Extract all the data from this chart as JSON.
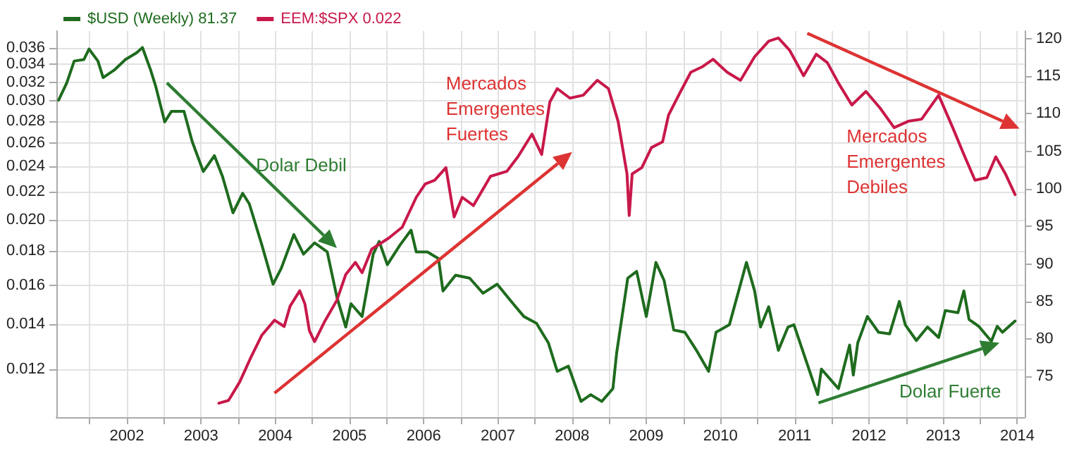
{
  "chart_data": {
    "type": "line",
    "series": [
      {
        "name": "$USD (Weekly) 81.37",
        "color": "#1e6b1e",
        "axis": "y2",
        "x": [
          2001.08,
          2001.19,
          2001.29,
          2001.42,
          2001.49,
          2001.61,
          2001.68,
          2001.83,
          2001.98,
          2002.13,
          2002.21,
          2002.32,
          2002.39,
          2002.51,
          2002.6,
          2002.77,
          2002.88,
          2003.03,
          2003.18,
          2003.29,
          2003.43,
          2003.56,
          2003.65,
          2003.82,
          2003.97,
          2004.08,
          2004.25,
          2004.38,
          2004.53,
          2004.7,
          2004.83,
          2004.95,
          2005.02,
          2005.17,
          2005.32,
          2005.4,
          2005.51,
          2005.68,
          2005.83,
          2005.9,
          2006.05,
          2006.2,
          2006.26,
          2006.43,
          2006.62,
          2006.8,
          2006.99,
          2007.18,
          2007.35,
          2007.52,
          2007.68,
          2007.8,
          2007.95,
          2008.12,
          2008.25,
          2008.4,
          2008.55,
          2008.6,
          2008.75,
          2008.87,
          2009.0,
          2009.13,
          2009.24,
          2009.37,
          2009.52,
          2009.67,
          2009.84,
          2009.94,
          2010.12,
          2010.27,
          2010.35,
          2010.46,
          2010.54,
          2010.65,
          2010.78,
          2010.91,
          2010.99,
          2011.12,
          2011.25,
          2011.31,
          2011.36,
          2011.51,
          2011.59,
          2011.74,
          2011.79,
          2011.85,
          2011.98,
          2012.13,
          2012.28,
          2012.41,
          2012.49,
          2012.64,
          2012.79,
          2012.94,
          2013.03,
          2013.2,
          2013.28,
          2013.35,
          2013.48,
          2013.65,
          2013.73,
          2013.8,
          2013.97
        ],
        "values": [
          111.8,
          114.1,
          117.0,
          117.2,
          118.6,
          117.0,
          114.8,
          115.8,
          117.2,
          118.1,
          118.8,
          115.8,
          113.6,
          108.9,
          110.3,
          110.3,
          106.3,
          102.3,
          104.4,
          101.6,
          96.8,
          99.4,
          98.0,
          92.5,
          87.3,
          89.4,
          93.9,
          91.3,
          92.8,
          91.6,
          85.6,
          81.6,
          84.7,
          83.0,
          91.3,
          93.0,
          89.9,
          92.5,
          94.5,
          91.6,
          91.6,
          90.7,
          86.4,
          88.5,
          88.1,
          86.1,
          87.3,
          85.0,
          83.0,
          82.1,
          79.5,
          75.7,
          76.4,
          71.7,
          72.6,
          71.7,
          73.4,
          78.1,
          88.1,
          89.0,
          83.0,
          90.2,
          87.8,
          81.2,
          80.9,
          78.6,
          75.7,
          80.9,
          81.9,
          87.3,
          90.2,
          86.4,
          81.6,
          84.3,
          78.5,
          81.6,
          81.9,
          78.1,
          74.3,
          72.6,
          76.0,
          74.3,
          73.4,
          79.2,
          75.2,
          79.5,
          83.0,
          80.9,
          80.7,
          85.0,
          81.9,
          79.8,
          81.6,
          80.2,
          83.8,
          83.5,
          86.4,
          82.6,
          81.7,
          79.7,
          81.7,
          80.9,
          82.4
        ]
      },
      {
        "name": "EEM:$SPX 0.022",
        "color": "#c8184a",
        "x": [
          2003.24,
          2003.37,
          2003.52,
          2003.67,
          2003.82,
          2003.99,
          2004.12,
          2004.2,
          2004.33,
          2004.4,
          2004.46,
          2004.53,
          2004.66,
          2004.83,
          2004.95,
          2005.08,
          2005.17,
          2005.3,
          2005.53,
          2005.71,
          2005.9,
          2006.02,
          2006.15,
          2006.3,
          2006.41,
          2006.52,
          2006.67,
          2006.9,
          2007.12,
          2007.27,
          2007.46,
          2007.59,
          2007.7,
          2007.8,
          2007.97,
          2008.15,
          2008.34,
          2008.49,
          2008.62,
          2008.68,
          2008.74,
          2008.77,
          2008.81,
          2008.94,
          2009.07,
          2009.22,
          2009.3,
          2009.45,
          2009.6,
          2009.75,
          2009.9,
          2010.09,
          2010.27,
          2010.46,
          2010.65,
          2010.78,
          2010.93,
          2011.12,
          2011.29,
          2011.44,
          2011.59,
          2011.77,
          2011.96,
          2012.15,
          2012.34,
          2012.53,
          2012.71,
          2012.94,
          2013.13,
          2013.28,
          2013.43,
          2013.59,
          2013.71,
          2013.84,
          2013.97
        ],
        "values": [
          0.0107,
          0.0108,
          0.0115,
          0.0125,
          0.0135,
          0.0142,
          0.0139,
          0.0149,
          0.0157,
          0.015,
          0.0137,
          0.0132,
          0.0141,
          0.0152,
          0.0166,
          0.0173,
          0.0167,
          0.0181,
          0.0188,
          0.0195,
          0.0216,
          0.0226,
          0.0229,
          0.0239,
          0.0202,
          0.0216,
          0.021,
          0.0232,
          0.0236,
          0.0248,
          0.0268,
          0.025,
          0.0299,
          0.0313,
          0.0303,
          0.0306,
          0.0322,
          0.0313,
          0.028,
          0.0256,
          0.0234,
          0.0203,
          0.0234,
          0.0239,
          0.0256,
          0.0261,
          0.0286,
          0.0308,
          0.0331,
          0.0337,
          0.0346,
          0.0331,
          0.0322,
          0.0349,
          0.0368,
          0.0372,
          0.0357,
          0.0327,
          0.0352,
          0.0342,
          0.0319,
          0.0296,
          0.031,
          0.0293,
          0.0274,
          0.028,
          0.0282,
          0.0306,
          0.0274,
          0.025,
          0.0229,
          0.0231,
          0.0248,
          0.0234,
          0.0218
        ]
      }
    ],
    "xlim": [
      2001.05,
      2014.1
    ],
    "xticks": [
      {
        "value": 2001.5,
        "label": null
      },
      2002,
      {
        "value": 2002.5,
        "label": null
      },
      2003,
      {
        "value": 2003.5,
        "label": null
      },
      2004,
      {
        "value": 2004.5,
        "label": null
      },
      2005,
      {
        "value": 2005.5,
        "label": null
      },
      2006,
      {
        "value": 2006.5,
        "label": null
      },
      2007,
      {
        "value": 2007.5,
        "label": null
      },
      2008,
      {
        "value": 2008.5,
        "label": null
      },
      2009,
      {
        "value": 2009.5,
        "label": null
      },
      2010,
      {
        "value": 2010.5,
        "label": null
      },
      2011,
      {
        "value": 2011.5,
        "label": null
      },
      2012,
      {
        "value": 2012.5,
        "label": null
      },
      2013,
      {
        "value": 2013.5,
        "label": null
      },
      2014
    ],
    "ylim": [
      0.0102,
      0.0381
    ],
    "yticks": [
      0.012,
      0.014,
      0.016,
      0.018,
      {
        "value": 0.02,
        "label": "0.020"
      },
      0.022,
      0.024,
      0.026,
      0.028,
      {
        "value": 0.03,
        "label": "0.030"
      },
      0.032,
      0.034,
      0.036
    ],
    "log": "y",
    "y2lim": [
      69.6,
      121
    ],
    "y2ticks": [
      75,
      80,
      85,
      90,
      95,
      100,
      105,
      110,
      115,
      120
    ],
    "grid": true,
    "legend": "top left",
    "line_style": "solid",
    "marker": "none",
    "annotations": [
      "Dolar Debil",
      "Mercados Emergentes Fuertes",
      "Mercados Emergentes Debiles",
      "Dolar Fuerte"
    ]
  }
}
